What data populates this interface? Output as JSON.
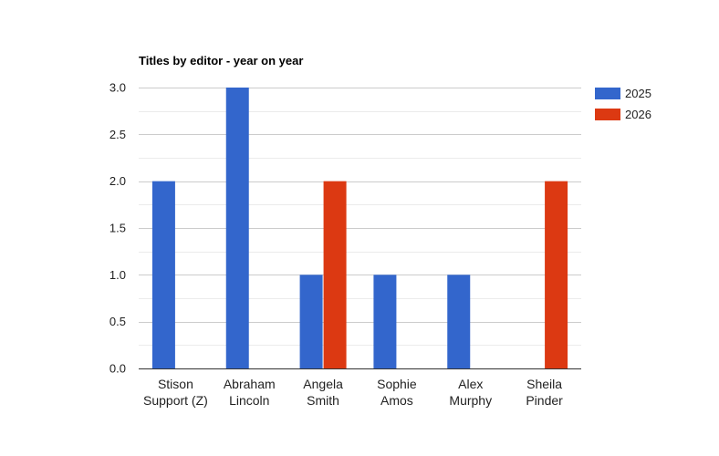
{
  "chart_data": {
    "type": "bar",
    "title": "Titles by editor - year on year",
    "categories": [
      [
        "Stison",
        "Support (Z)"
      ],
      [
        "Abraham",
        "Lincoln"
      ],
      [
        "Angela",
        "Smith"
      ],
      [
        "Sophie",
        "Amos"
      ],
      [
        "Alex",
        "Murphy"
      ],
      [
        "Sheila",
        "Pinder"
      ]
    ],
    "series": [
      {
        "name": "2025",
        "color": "#3366cc",
        "values": [
          2,
          3,
          1,
          1,
          1,
          0
        ]
      },
      {
        "name": "2026",
        "color": "#dc3912",
        "values": [
          0,
          0,
          2,
          0,
          0,
          2
        ]
      }
    ],
    "ylim": [
      0,
      3
    ],
    "yticks": [
      "0.0",
      "0.5",
      "1.0",
      "1.5",
      "2.0",
      "2.5",
      "3.0"
    ],
    "ytick_values": [
      0,
      0.5,
      1,
      1.5,
      2,
      2.5,
      3
    ],
    "grid": true,
    "legend": "right"
  }
}
